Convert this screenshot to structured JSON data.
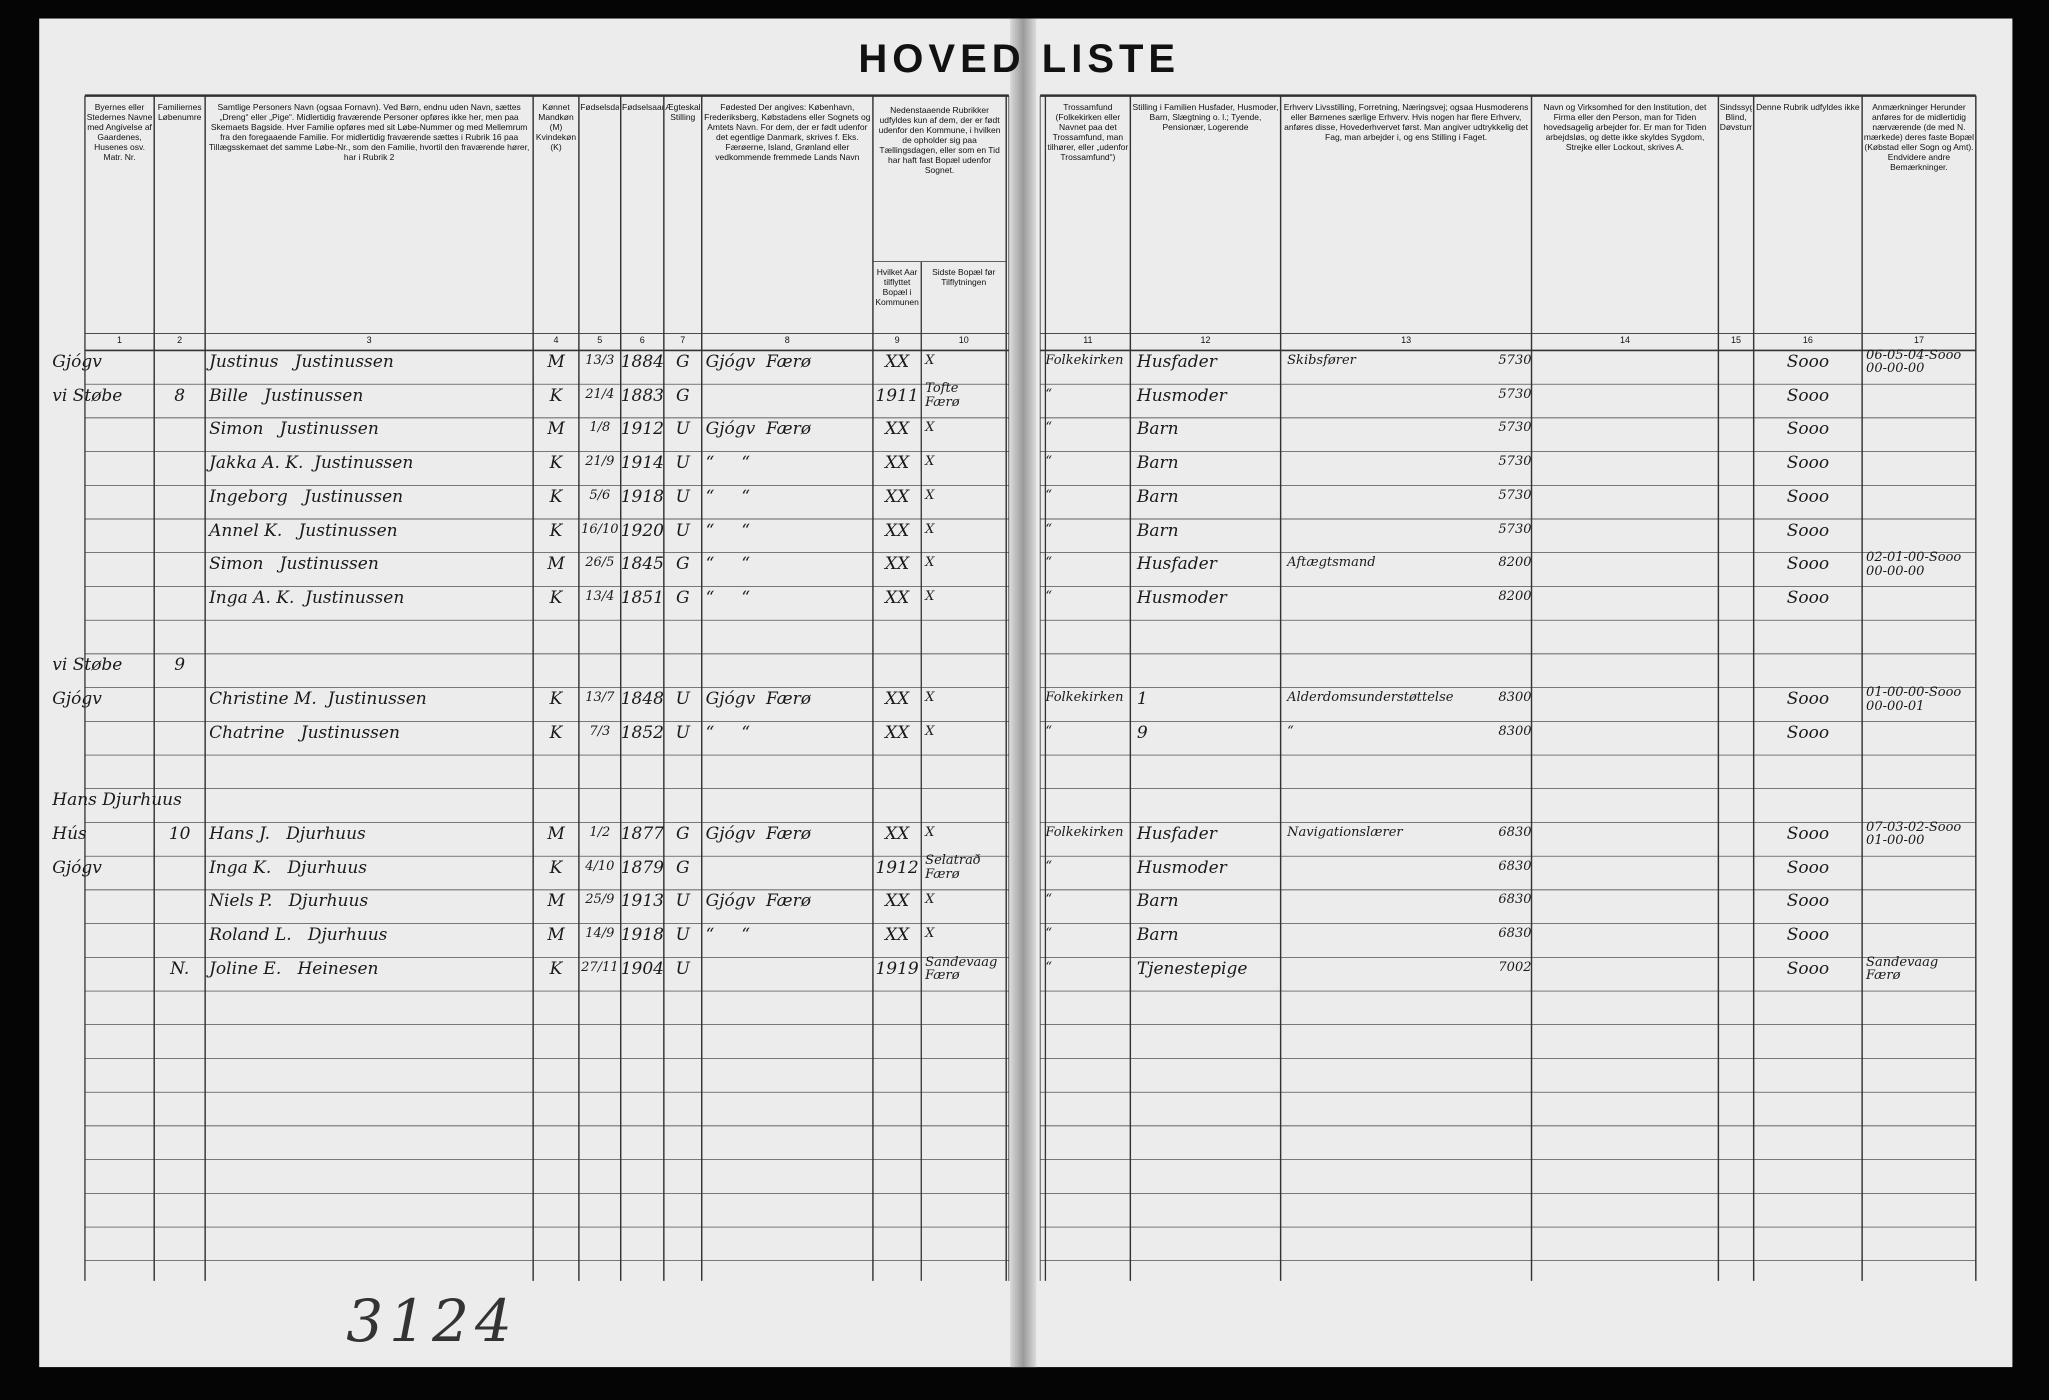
{
  "title": "HOVED LISTE",
  "columns": [
    {
      "number": "1",
      "header": "Byernes eller Stedernes Navne med Angivelse af Gaardenes, Husenes osv. Matr. Nr."
    },
    {
      "number": "2",
      "header": "Familiernes Løbenumre"
    },
    {
      "number": "3",
      "header": "Samtlige Personers Navn (ogsaa Fornavn). Ved Børn, endnu uden Navn, sættes „Dreng“ eller „Pige“. Midlertidig fraværende Personer opføres ikke her, men paa Skemaets Bagside. Hver Familie opføres med sit Løbe-Nummer og med Mellemrum fra den foregaaende Familie. For midlertidig fraværende sættes i Rubrik 16 paa Tillægsskemaet det samme Løbe-Nr., som den Familie, hvortil den fraværende hører, har i Rubrik 2"
    },
    {
      "number": "4",
      "header": "Kønnet Mandkøn (M) Kvindekøn (K)"
    },
    {
      "number": "5",
      "header": "Fødselsdag"
    },
    {
      "number": "6",
      "header": "Fødselsaar"
    },
    {
      "number": "7",
      "header": "Ægteskabelig Stilling"
    },
    {
      "number": "8",
      "header": "Fødested Der angives: København, Frederiksberg, Købstadens eller Sognets og Amtets Navn. For dem, der er født udenfor det egentlige Danmark, skrives f. Eks. Færøerne, Island, Grønland eller vedkommende fremmede Lands Navn"
    },
    {
      "number": "9",
      "header": "Hvilket Aar tilflyttet Bopæl i Kommunen"
    },
    {
      "number": "10",
      "header": "Sidste Bopæl før Tilflytningen"
    },
    {
      "number": "11",
      "header": "Trossamfund (Folkekirken eller Navnet paa det Trossamfund, man tilhører, eller „udenfor Trossamfund“)"
    },
    {
      "number": "12",
      "header": "Stilling i Familien Husfader, Husmoder, Barn, Slægtning o. l.; Tyende, Pensionær, Logerende"
    },
    {
      "number": "13",
      "header": "Erhverv Livsstilling, Forretning, Næringsvej; ogsaa Husmoderens eller Børnenes særlige Erhverv. Hvis nogen har flere Erhverv, anføres disse, Hovederhvervet først. Man angiver udtrykkelig det Fag, man arbejder i, og ens Stilling i Faget."
    },
    {
      "number": "14",
      "header": "Navn og Virksomhed for den Institution, det Firma eller den Person, man for Tiden hovedsagelig arbejder for. Er man for Tiden arbejdsløs, og dette ikke skyldes Sygdom, Strejke eller Lockout, skrives A."
    },
    {
      "number": "15",
      "header": "Sindssyg, Blind, Døvstum"
    },
    {
      "number": "16",
      "header": "Denne Rubrik udfyldes ikke"
    },
    {
      "number": "17",
      "header": "Anmærkninger Herunder anføres for de midlertidig nærværende (de med N. mærkede) deres faste Bopæl (Købstad eller Sogn og Amt). Endvidere andre Bemærkninger."
    }
  ],
  "columns_9_10_header": "Nedenstaaende Rubrikker udfyldes kun af dem, der er født udenfor den Kommune, i hvilken de opholder sig paa Tællingsdagen, eller som en Tid har haft fast Bopæl udenfor Sognet.",
  "rows": [
    {
      "place": "Gjógv",
      "name": "Justinus   Justinussen",
      "sex": "M",
      "birth_day": "13/3",
      "birth_year": "1884",
      "marital": "G",
      "birthplace": "Gjógv  Færø",
      "moved_year": "XX",
      "previous_residence": "X",
      "religion": "Folkekirken",
      "position": "Husfader",
      "occupation": "Skibsfører",
      "occupation_code": "5730",
      "col16": "Sooo",
      "remarks": "06-05-04-Sooo\n00-00-00"
    },
    {
      "place": "vi Støbe",
      "family": "8",
      "name": "Bille   Justinussen",
      "sex": "K",
      "birth_day": "21/4",
      "birth_year": "1883",
      "marital": "G",
      "moved_year": "1911",
      "previous_residence": "Tofte\nFærø",
      "religion": "“",
      "position": "Husmoder",
      "occupation_code": "5730",
      "col16": "Sooo"
    },
    {
      "name": "Simon   Justinussen",
      "sex": "M",
      "birth_day": "1/8",
      "birth_year": "1912",
      "marital": "U",
      "birthplace": "Gjógv  Færø",
      "moved_year": "XX",
      "previous_residence": "X",
      "religion": "“",
      "position": "Barn",
      "occupation_code": "5730",
      "col16": "Sooo"
    },
    {
      "name": "Jakka A. K.  Justinussen",
      "sex": "K",
      "birth_day": "21/9",
      "birth_year": "1914",
      "marital": "U",
      "birthplace": "“     “",
      "moved_year": "XX",
      "previous_residence": "X",
      "religion": "“",
      "position": "Barn",
      "occupation_code": "5730",
      "col16": "Sooo"
    },
    {
      "name": "Ingeborg   Justinussen",
      "sex": "K",
      "birth_day": "5/6",
      "birth_year": "1918",
      "marital": "U",
      "birthplace": "“     “",
      "moved_year": "XX",
      "previous_residence": "X",
      "religion": "“",
      "position": "Barn",
      "occupation_code": "5730",
      "col16": "Sooo"
    },
    {
      "name": "Annel K.   Justinussen",
      "sex": "K",
      "birth_day": "16/10",
      "birth_year": "1920",
      "marital": "U",
      "birthplace": "“     “",
      "moved_year": "XX",
      "previous_residence": "X",
      "religion": "“",
      "position": "Barn",
      "occupation_code": "5730",
      "col16": "Sooo"
    },
    {
      "name": "Simon   Justinussen",
      "sex": "M",
      "birth_day": "26/5",
      "birth_year": "1845",
      "marital": "G",
      "birthplace": "“     “",
      "moved_year": "XX",
      "previous_residence": "X",
      "religion": "“",
      "position": "Husfader",
      "occupation": "Aftægtsmand",
      "occupation_code": "8200",
      "col16": "Sooo",
      "remarks": "02-01-00-Sooo\n00-00-00"
    },
    {
      "name": "Inga A. K.  Justinussen",
      "sex": "K",
      "birth_day": "13/4",
      "birth_year": "1851",
      "marital": "G",
      "birthplace": "“     “",
      "moved_year": "XX",
      "previous_residence": "X",
      "religion": "“",
      "position": "Husmoder",
      "occupation_code": "8200",
      "col16": "Sooo"
    },
    {
      "place": "vi Støbe",
      "family": "9"
    },
    {
      "place": "Gjógv",
      "name": "Christine M.  Justinussen",
      "sex": "K",
      "birth_day": "13/7",
      "birth_year": "1848",
      "marital": "U",
      "birthplace": "Gjógv  Færø",
      "moved_year": "XX",
      "previous_residence": "X",
      "religion": "Folkekirken",
      "position": "1",
      "occupation": "Alderdomsunderstøttelse",
      "occupation_code": "8300",
      "col16": "Sooo",
      "remarks": "01-00-00-Sooo\n00-00-01"
    },
    {
      "name": "Chatrine   Justinussen",
      "sex": "K",
      "birth_day": "7/3",
      "birth_year": "1852",
      "marital": "U",
      "birthplace": "“     “",
      "moved_year": "XX",
      "previous_residence": "X",
      "religion": "“",
      "position": "9",
      "occupation": "“",
      "occupation_code": "8300",
      "col16": "Sooo"
    },
    {
      "place": "Hans Djurhuus"
    },
    {
      "place": "Hús",
      "family": "10",
      "name": "Hans J.   Djurhuus",
      "sex": "M",
      "birth_day": "1/2",
      "birth_year": "1877",
      "marital": "G",
      "birthplace": "Gjógv  Færø",
      "moved_year": "XX",
      "previous_residence": "X",
      "religion": "Folkekirken",
      "position": "Husfader",
      "occupation": "Navigationslærer",
      "occupation_code": "6830",
      "col16": "Sooo",
      "remarks": "07-03-02-Sooo\n01-00-00"
    },
    {
      "place": "Gjógv",
      "name": "Inga K.   Djurhuus",
      "sex": "K",
      "birth_day": "4/10",
      "birth_year": "1879",
      "marital": "G",
      "moved_year": "1912",
      "previous_residence": "Selatrað\nFærø",
      "religion": "“",
      "position": "Husmoder",
      "occupation_code": "6830",
      "col16": "Sooo"
    },
    {
      "name": "Niels P.   Djurhuus",
      "sex": "M",
      "birth_day": "25/9",
      "birth_year": "1913",
      "marital": "U",
      "birthplace": "Gjógv  Færø",
      "moved_year": "XX",
      "previous_residence": "X",
      "religion": "“",
      "position": "Barn",
      "occupation_code": "6830",
      "col16": "Sooo"
    },
    {
      "name": "Roland L.   Djurhuus",
      "sex": "M",
      "birth_day": "14/9",
      "birth_year": "1918",
      "marital": "U",
      "birthplace": "“     “",
      "moved_year": "XX",
      "previous_residence": "X",
      "religion": "“",
      "position": "Barn",
      "occupation_code": "6830",
      "col16": "Sooo"
    },
    {
      "family": "N.",
      "name": "Joline E.   Heinesen",
      "sex": "K",
      "birth_day": "27/11",
      "birth_year": "1904",
      "marital": "U",
      "moved_year": "1919",
      "previous_residence": "Sandevaag\nFærø",
      "religion": "“",
      "position": "Tjenestepige",
      "occupation_code": "7002",
      "col16": "Sooo",
      "remarks": "Sandevaag\nFærø"
    }
  ],
  "stamp": "3124"
}
